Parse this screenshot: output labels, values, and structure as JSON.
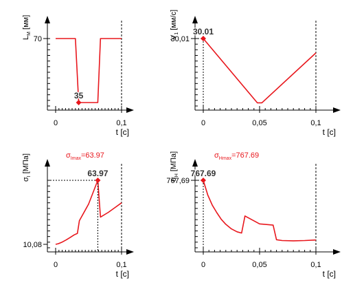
{
  "colors": {
    "curve": "#e8161c",
    "axis": "#000000",
    "label": "#000000",
    "accent": "#e8161c"
  },
  "chart_data": [
    {
      "type": "line",
      "ylabel_main": "L",
      "ylabel_sub": "M",
      "ylabel_unit": "[мм]",
      "xlabel": "t [c]",
      "x_ticks": [
        {
          "value": 0,
          "label": "0"
        },
        {
          "value": 0.1,
          "label": "0,1"
        }
      ],
      "x_range": [
        -0.015,
        0.1
      ],
      "y_range": [
        35,
        70
      ],
      "y_ticks": [
        {
          "value": 70,
          "label": "70"
        }
      ],
      "series": [
        {
          "x": [
            0,
            0.03,
            0.035,
            0.064,
            0.068,
            0.1
          ],
          "y": [
            70,
            70,
            35,
            35,
            70,
            70
          ]
        }
      ],
      "marker": {
        "x": 0.035,
        "y": 35,
        "label": "35"
      },
      "title_main": "",
      "title_sub": "",
      "title_value": ""
    },
    {
      "type": "line",
      "ylabel_main": "V",
      "ylabel_sub": "1",
      "ylabel_unit": "[мм/с]",
      "xlabel": "t [c]",
      "x_ticks": [
        {
          "value": 0,
          "label": "0"
        },
        {
          "value": 0.05,
          "label": "0,05"
        },
        {
          "value": 0.1,
          "label": "0,1"
        }
      ],
      "x_range": [
        -0.015,
        0.1
      ],
      "y_range": [
        0,
        30.01
      ],
      "y_ticks": [
        {
          "value": 30.01,
          "label": "30,01"
        }
      ],
      "series": [
        {
          "x": [
            0,
            0.048,
            0.052,
            0.1
          ],
          "y": [
            30.01,
            0.5,
            0.5,
            23.4
          ]
        }
      ],
      "marker": {
        "x": 0,
        "y": 30.01,
        "label": "30.01"
      },
      "title_main": "",
      "title_sub": "",
      "title_value": ""
    },
    {
      "type": "line",
      "ylabel_main": "σ",
      "ylabel_sub": "I",
      "ylabel_unit": "[МПа]",
      "xlabel": "t [c]",
      "x_ticks": [
        {
          "value": 0,
          "label": "0"
        },
        {
          "value": 0.1,
          "label": "0,1"
        }
      ],
      "x_range": [
        -0.015,
        0.1
      ],
      "y_range": [
        10.08,
        63.97
      ],
      "y_ticks": [
        {
          "value": 10.08,
          "label": "10,08"
        }
      ],
      "series": [
        {
          "x": [
            0,
            0.004,
            0.01,
            0.016,
            0.022,
            0.028,
            0.033,
            0.036,
            0.05,
            0.064,
            0.068,
            0.08,
            0.09,
            0.1
          ],
          "y": [
            10.08,
            10.6,
            12.0,
            13.8,
            15.8,
            18.0,
            19.3,
            30.0,
            44.0,
            63.97,
            33.0,
            37.0,
            41.0,
            45.0
          ]
        }
      ],
      "marker": {
        "x": 0.064,
        "y": 63.97,
        "label": "63.97"
      },
      "title_main": "σ",
      "title_sub": "Imax",
      "title_value": "=63.97"
    },
    {
      "type": "line",
      "ylabel_main": "σ",
      "ylabel_sub": "H",
      "ylabel_unit": "[МПа]",
      "xlabel": "t [c]",
      "x_ticks": [
        {
          "value": 0,
          "label": "0"
        },
        {
          "value": 0.05,
          "label": "0,05"
        },
        {
          "value": 0.1,
          "label": "0,1"
        }
      ],
      "x_range": [
        -0.015,
        0.1
      ],
      "y_range": [
        0,
        767.69
      ],
      "y_ticks": [
        {
          "value": 767.69,
          "label": "767,69"
        }
      ],
      "series": [
        {
          "x": [
            0,
            0.004,
            0.008,
            0.012,
            0.016,
            0.02,
            0.025,
            0.03,
            0.034,
            0.037,
            0.05,
            0.062,
            0.065,
            0.07,
            0.08,
            0.09,
            0.1
          ],
          "y": [
            767.69,
            590,
            470,
            380,
            300,
            240,
            185,
            150,
            135,
            340,
            245,
            230,
            55,
            45,
            42,
            45,
            52
          ]
        }
      ],
      "marker": {
        "x": 0,
        "y": 767.69,
        "label": "767.69"
      },
      "title_main": "σ",
      "title_sub": "Hmax",
      "title_value": "=767.69"
    }
  ]
}
